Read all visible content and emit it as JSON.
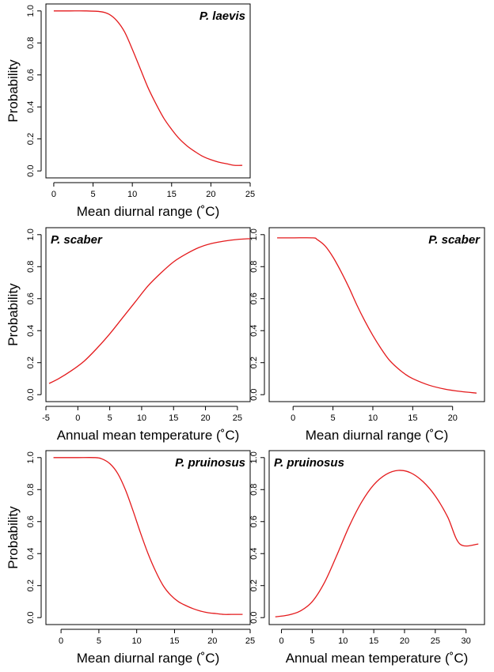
{
  "colors": {
    "curve": "#e41a1c",
    "axis": "#000000",
    "background": "#ffffff"
  },
  "chart_data": [
    {
      "type": "line",
      "title": "P. laevis",
      "xlabel": "Mean diurnal range (˚C)",
      "ylabel": "Probability",
      "xlim": [
        -1,
        25
      ],
      "ylim": [
        0,
        1
      ],
      "xticks": [
        0,
        5,
        10,
        15,
        20,
        25
      ],
      "yticks": [
        0.0,
        0.2,
        0.4,
        0.6,
        0.8,
        1.0
      ],
      "x": [
        0,
        2,
        4,
        6,
        7,
        8,
        9,
        10,
        11,
        12,
        13,
        14,
        15,
        16,
        17,
        18,
        19,
        20,
        21,
        22,
        23,
        24
      ],
      "values": [
        1.0,
        1.0,
        1.0,
        0.995,
        0.98,
        0.94,
        0.87,
        0.76,
        0.64,
        0.52,
        0.42,
        0.33,
        0.26,
        0.2,
        0.155,
        0.12,
        0.09,
        0.07,
        0.055,
        0.045,
        0.035,
        0.035
      ]
    },
    {
      "type": "line",
      "title": "P. scaber",
      "xlabel": "Annual mean temperature (˚C)",
      "ylabel": "Probability",
      "xlim": [
        -5,
        27
      ],
      "ylim": [
        0,
        1
      ],
      "xticks": [
        -5,
        0,
        5,
        10,
        15,
        20,
        25
      ],
      "yticks": [
        0.0,
        0.2,
        0.4,
        0.6,
        0.8,
        1.0
      ],
      "x": [
        -4.5,
        -3,
        -1,
        1,
        3,
        5,
        7,
        9,
        11,
        13,
        15,
        17,
        19,
        21,
        23,
        25,
        27
      ],
      "values": [
        0.07,
        0.1,
        0.15,
        0.21,
        0.29,
        0.38,
        0.48,
        0.58,
        0.68,
        0.76,
        0.83,
        0.88,
        0.92,
        0.945,
        0.96,
        0.97,
        0.975
      ]
    },
    {
      "type": "line",
      "title": "P. scaber",
      "xlabel": "Mean diurnal range (˚C)",
      "ylabel": "",
      "xlim": [
        -3,
        24
      ],
      "ylim": [
        0,
        1
      ],
      "xticks": [
        0,
        5,
        10,
        15,
        20
      ],
      "yticks": [
        0.0,
        0.2,
        0.4,
        0.6,
        0.8,
        1.0
      ],
      "x": [
        -2,
        0,
        2.5,
        3,
        4,
        5,
        6,
        7,
        8,
        9,
        10,
        11,
        12,
        13,
        14,
        15,
        17,
        19,
        21,
        23
      ],
      "values": [
        0.98,
        0.98,
        0.98,
        0.97,
        0.93,
        0.86,
        0.77,
        0.67,
        0.56,
        0.46,
        0.37,
        0.29,
        0.22,
        0.17,
        0.13,
        0.1,
        0.06,
        0.035,
        0.02,
        0.01
      ]
    },
    {
      "type": "line",
      "title": "P. pruinosus",
      "xlabel": "Mean diurnal range (˚C)",
      "ylabel": "Probability",
      "xlim": [
        -2,
        25
      ],
      "ylim": [
        0,
        1
      ],
      "xticks": [
        0,
        5,
        10,
        15,
        20,
        25
      ],
      "yticks": [
        0.0,
        0.2,
        0.4,
        0.6,
        0.8,
        1.0
      ],
      "x": [
        -1,
        2,
        4.5,
        5.5,
        6.5,
        7.5,
        8.5,
        9.5,
        10.5,
        11.5,
        12.5,
        13.5,
        14.5,
        15.5,
        16.5,
        17.5,
        18.5,
        19.5,
        20.5,
        21.5,
        22.5,
        24
      ],
      "values": [
        1.0,
        1.0,
        1.0,
        0.99,
        0.96,
        0.9,
        0.8,
        0.67,
        0.53,
        0.4,
        0.29,
        0.2,
        0.14,
        0.1,
        0.075,
        0.055,
        0.04,
        0.03,
        0.025,
        0.02,
        0.02,
        0.02
      ]
    },
    {
      "type": "line",
      "title": "P. pruinosus",
      "xlabel": "Annual mean temperature (˚C)",
      "ylabel": "",
      "xlim": [
        -2,
        33
      ],
      "ylim": [
        0,
        1
      ],
      "xticks": [
        0,
        5,
        10,
        15,
        20,
        25,
        30
      ],
      "yticks": [
        0.0,
        0.2,
        0.4,
        0.6,
        0.8,
        1.0
      ],
      "x": [
        -1,
        1,
        3,
        5,
        7,
        9,
        11,
        13,
        15,
        17,
        19,
        21,
        23,
        25,
        27,
        29,
        32
      ],
      "values": [
        0.005,
        0.015,
        0.04,
        0.1,
        0.22,
        0.39,
        0.57,
        0.72,
        0.83,
        0.895,
        0.92,
        0.905,
        0.85,
        0.76,
        0.63,
        0.46,
        0.46
      ]
    }
  ]
}
